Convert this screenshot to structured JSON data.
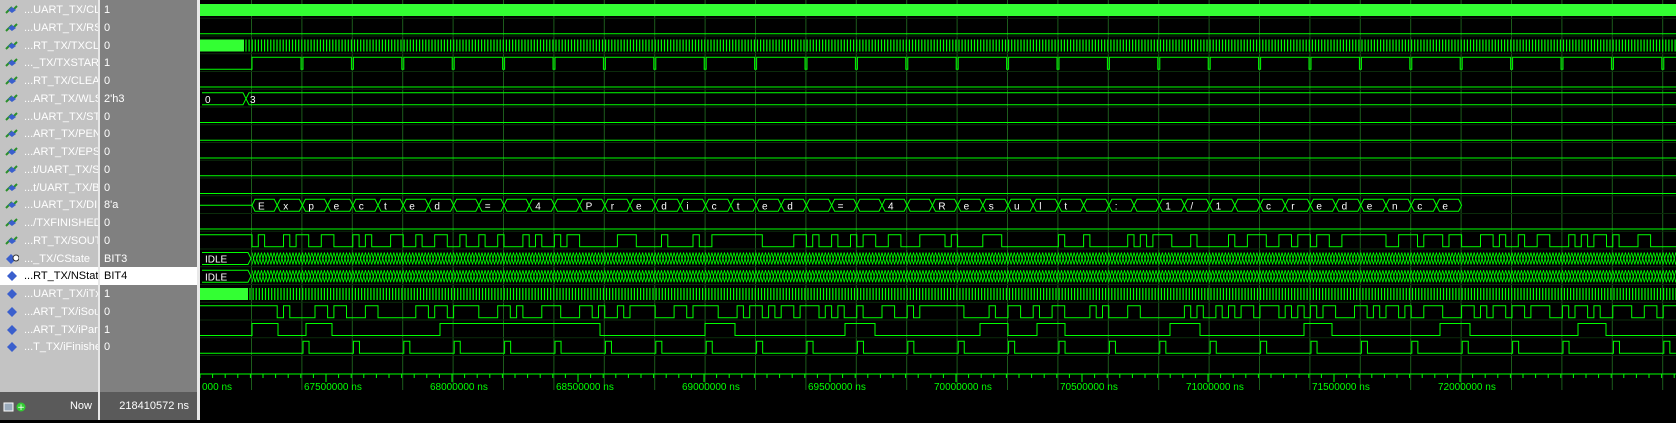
{
  "signals": [
    {
      "name": "...UART_TX/CLK",
      "value": "1",
      "icon": "logic-signal-icon"
    },
    {
      "name": "...UART_TX/RST",
      "value": "0",
      "icon": "logic-signal-icon"
    },
    {
      "name": "...RT_TX/TXCLK",
      "value": "0",
      "icon": "logic-signal-icon"
    },
    {
      "name": "..._TX/TXSTART",
      "value": "1",
      "icon": "logic-signal-icon"
    },
    {
      "name": "...RT_TX/CLEAR",
      "value": "0",
      "icon": "logic-signal-icon"
    },
    {
      "name": "...ART_TX/WLS",
      "value": "2'h3",
      "icon": "logic-signal-icon"
    },
    {
      "name": "...UART_TX/STB",
      "value": "0",
      "icon": "logic-signal-icon"
    },
    {
      "name": "...ART_TX/PEN",
      "value": "0",
      "icon": "logic-signal-icon"
    },
    {
      "name": "...ART_TX/EPS",
      "value": "0",
      "icon": "logic-signal-icon"
    },
    {
      "name": "...t/UART_TX/SP",
      "value": "0",
      "icon": "logic-signal-icon"
    },
    {
      "name": "...t/UART_TX/BC",
      "value": "0",
      "icon": "logic-signal-icon"
    },
    {
      "name": "...UART_TX/DIN",
      "value": "8'a",
      "icon": "logic-signal-icon"
    },
    {
      "name": ".../TXFINISHED",
      "value": "0",
      "icon": "logic-signal-icon"
    },
    {
      "name": "...RT_TX/SOUT",
      "value": "0",
      "icon": "logic-signal-icon"
    },
    {
      "name": "..._TX/CState",
      "value": "BIT3",
      "icon": "state-signal-icon"
    },
    {
      "name": "...RT_TX/NState",
      "value": "BIT4",
      "icon": "diamond-signal-icon"
    },
    {
      "name": "...UART_TX/iTx2",
      "value": "1",
      "icon": "diamond-signal-icon"
    },
    {
      "name": "...ART_TX/iSout",
      "value": "0",
      "icon": "diamond-signal-icon"
    },
    {
      "name": "...ART_TX/iParity",
      "value": "1",
      "icon": "diamond-signal-icon"
    },
    {
      "name": "...T_TX/iFinished",
      "value": "0",
      "icon": "diamond-signal-icon"
    }
  ],
  "selected_index": 15,
  "now_label": "Now",
  "now_value": "218410572 ns",
  "wls_values": [
    "0",
    "3"
  ],
  "state_labels": {
    "cstate": "IDLE",
    "nstate": "IDLE"
  },
  "din_chars": [
    "E",
    "x",
    "p",
    "e",
    "c",
    "t",
    "e",
    "d",
    "",
    "=",
    "",
    "4",
    "",
    "P",
    "r",
    "e",
    "d",
    "i",
    "c",
    "t",
    "e",
    "d",
    "",
    "=",
    "",
    "4",
    "",
    "R",
    "e",
    "s",
    "u",
    "l",
    "t",
    "",
    ":",
    "",
    "1",
    "/",
    "1",
    "",
    "c",
    "r",
    "e",
    "d",
    "e",
    "n",
    "c",
    "e"
  ],
  "time_axis": {
    "first_label": "000 ns",
    "labels": [
      "67500000 ns",
      "68000000 ns",
      "68500000 ns",
      "69000000 ns",
      "69500000 ns",
      "70000000 ns",
      "70500000 ns",
      "71000000 ns",
      "71500000 ns",
      "72000000 ns"
    ]
  },
  "colors": {
    "wave": "#00ff00",
    "clk_fill": "#33ff33",
    "grid": "#1c5c1c",
    "text": "#ffffff"
  }
}
